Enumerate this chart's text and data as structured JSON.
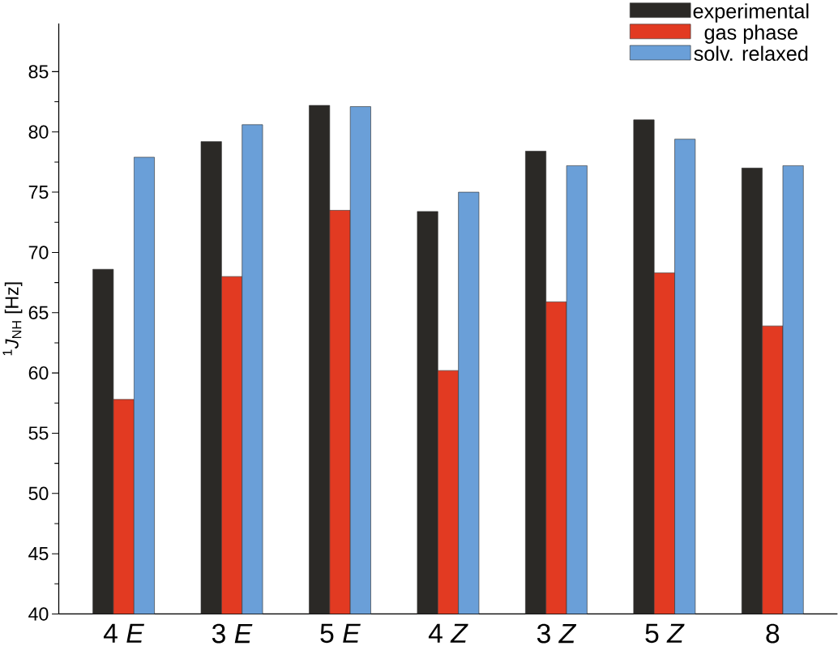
{
  "chart_data": {
    "type": "bar",
    "ylabel": "$^{1}$*J*$_{NH}$ [Hz]",
    "categories": [
      "4 *E*",
      "3 *E*",
      "5 *E*",
      "4 *Z*",
      "3 *Z*",
      "5 *Z*",
      "8"
    ],
    "series": [
      {
        "name": "experimental",
        "color": "#2b2926",
        "values": [
          68.6,
          79.2,
          82.2,
          73.4,
          78.4,
          81.0,
          77.0
        ]
      },
      {
        "name": "gas phase",
        "color": "#e23a22",
        "values": [
          57.8,
          68.0,
          73.5,
          60.2,
          65.9,
          68.3,
          63.9
        ]
      },
      {
        "name": "solv. relaxed",
        "color": "#6a9fd8",
        "values": [
          77.9,
          80.6,
          82.1,
          75.0,
          77.2,
          79.4,
          77.2
        ]
      }
    ],
    "ylim": [
      40,
      89
    ],
    "yticks": [
      40,
      45,
      50,
      55,
      60,
      65,
      70,
      75,
      80,
      85
    ],
    "legend": "top right"
  }
}
